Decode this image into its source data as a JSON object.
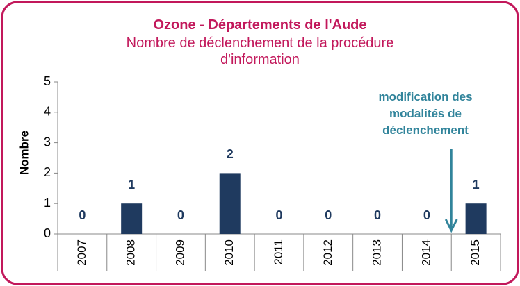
{
  "chart_data": {
    "type": "bar",
    "title": "Ozone - Départements de l'Aude",
    "subtitle": "Nombre de déclenchement de la procédure d'information",
    "y_label": "Nombre",
    "categories": [
      "2007",
      "2008",
      "2009",
      "2010",
      "2011",
      "2012",
      "2013",
      "2014",
      "2015"
    ],
    "values": [
      0,
      1,
      0,
      2,
      0,
      0,
      0,
      0,
      1
    ],
    "color": "#1f3a5f",
    "title_color": "#c2185b",
    "ylim": [
      0,
      5
    ],
    "yticks": [
      0,
      1,
      2,
      3,
      4,
      5
    ],
    "annotation": {
      "text": "modification des modalités de déclenchement",
      "color": "#31849b"
    }
  }
}
